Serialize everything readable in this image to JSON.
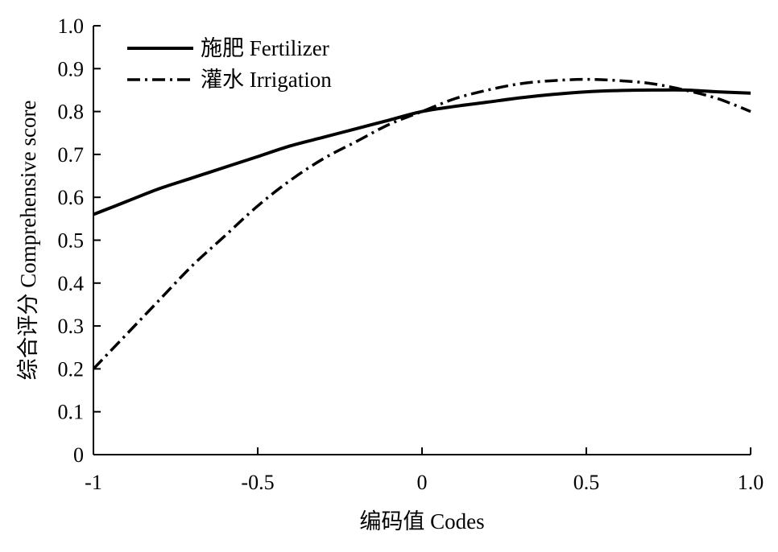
{
  "chart_data": {
    "type": "line",
    "title": "",
    "xlabel": "编码值 Codes",
    "ylabel": "综合评分 Comprehensive score",
    "xlim": [
      -1,
      1
    ],
    "ylim": [
      0,
      1
    ],
    "x_ticks": [
      -1,
      -0.5,
      0,
      0.5,
      1.0
    ],
    "x_tick_labels": [
      "-1",
      "-0.5",
      "0",
      "0.5",
      "1.0"
    ],
    "y_ticks": [
      0,
      0.1,
      0.2,
      0.3,
      0.4,
      0.5,
      0.6,
      0.7,
      0.8,
      0.9,
      1.0
    ],
    "y_tick_labels": [
      "0",
      "0.1",
      "0.2",
      "0.3",
      "0.4",
      "0.5",
      "0.6",
      "0.7",
      "0.8",
      "0.9",
      "1.0"
    ],
    "grid": false,
    "legend_position": "top-left",
    "series": [
      {
        "name": "施肥 Fertilizer",
        "line_style": "solid",
        "color": "#000000",
        "x": [
          -1.0,
          -0.9,
          -0.8,
          -0.7,
          -0.6,
          -0.5,
          -0.4,
          -0.3,
          -0.2,
          -0.1,
          0.0,
          0.1,
          0.2,
          0.3,
          0.4,
          0.5,
          0.6,
          0.7,
          0.8,
          0.9,
          1.0
        ],
        "y": [
          0.56,
          0.59,
          0.62,
          0.645,
          0.67,
          0.695,
          0.72,
          0.74,
          0.76,
          0.78,
          0.8,
          0.812,
          0.822,
          0.832,
          0.84,
          0.846,
          0.849,
          0.85,
          0.85,
          0.846,
          0.843
        ]
      },
      {
        "name": "灌水 Irrigation",
        "line_style": "dash-dot",
        "color": "#000000",
        "x": [
          -1.0,
          -0.9,
          -0.8,
          -0.7,
          -0.6,
          -0.5,
          -0.4,
          -0.3,
          -0.2,
          -0.1,
          0.0,
          0.1,
          0.2,
          0.3,
          0.4,
          0.5,
          0.6,
          0.7,
          0.8,
          0.9,
          1.0
        ],
        "y": [
          0.2,
          0.28,
          0.36,
          0.44,
          0.51,
          0.58,
          0.64,
          0.69,
          0.73,
          0.77,
          0.8,
          0.83,
          0.85,
          0.865,
          0.872,
          0.875,
          0.872,
          0.865,
          0.85,
          0.83,
          0.8
        ]
      }
    ]
  }
}
